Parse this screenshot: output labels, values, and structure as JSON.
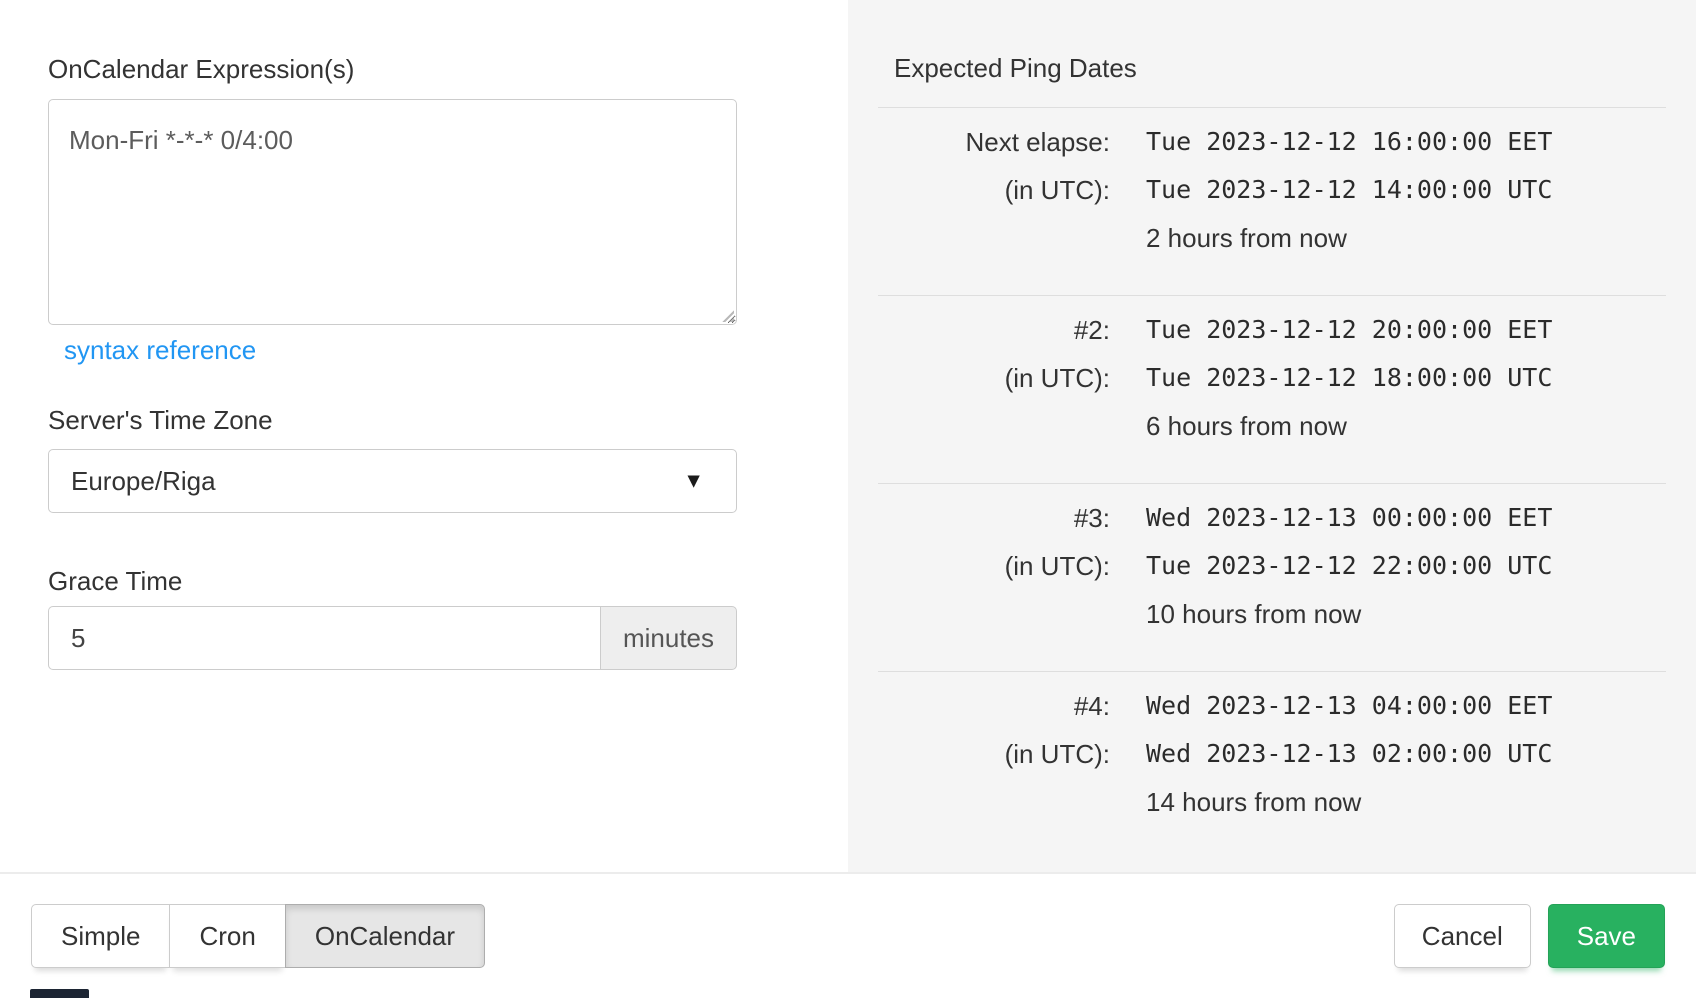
{
  "form": {
    "expression_label": "OnCalendar Expression(s)",
    "expression_value": "Mon-Fri *-*-* 0/4:00",
    "syntax_reference_label": "syntax reference",
    "timezone_label": "Server's Time Zone",
    "timezone_value": "Europe/Riga",
    "grace_label": "Grace Time",
    "grace_value": "5",
    "grace_unit": "minutes"
  },
  "icons": {
    "dropdown_caret": "▼"
  },
  "ping_dates": {
    "title": "Expected Ping Dates",
    "utc_label": "(in UTC):",
    "rows": [
      {
        "label": "Next elapse:",
        "local": "Tue 2023-12-12 16:00:00 EET",
        "utc": "Tue 2023-12-12 14:00:00 UTC",
        "relative": "2 hours from now"
      },
      {
        "label": "#2:",
        "local": "Tue 2023-12-12 20:00:00 EET",
        "utc": "Tue 2023-12-12 18:00:00 UTC",
        "relative": "6 hours from now"
      },
      {
        "label": "#3:",
        "local": "Wed 2023-12-13 00:00:00 EET",
        "utc": "Tue 2023-12-12 22:00:00 UTC",
        "relative": "10 hours from now"
      },
      {
        "label": "#4:",
        "local": "Wed 2023-12-13 04:00:00 EET",
        "utc": "Wed 2023-12-13 02:00:00 UTC",
        "relative": "14 hours from now"
      }
    ]
  },
  "footer": {
    "mode_tabs": [
      {
        "label": "Simple",
        "active": false
      },
      {
        "label": "Cron",
        "active": false
      },
      {
        "label": "OnCalendar",
        "active": true
      }
    ],
    "cancel_label": "Cancel",
    "save_label": "Save"
  },
  "colors": {
    "accent_blue": "#2196f3",
    "save_green": "#28b160",
    "panel_bg": "#f5f5f5",
    "active_tab_bg": "#e6e6e6"
  }
}
